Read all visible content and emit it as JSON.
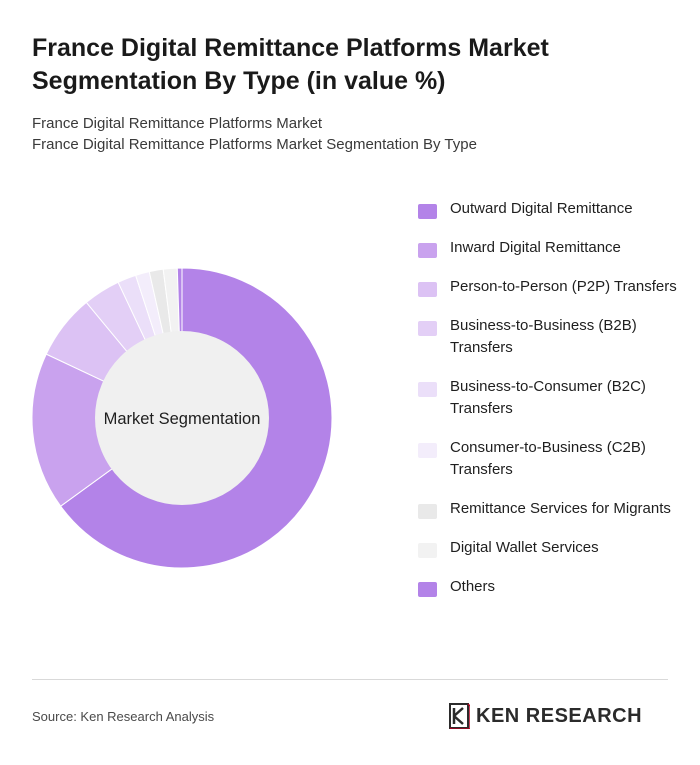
{
  "title": "France Digital Remittance Platforms Market Segmentation By Type (in value %)",
  "subtitle": {
    "line1": "France Digital Remittance Platforms Market",
    "line2": "France Digital Remittance Platforms Market Segmentation By Type"
  },
  "chart_data": {
    "type": "pie",
    "style": "donut",
    "center_label": "Market Segmentation",
    "legend_position": "right",
    "categories": [
      "Outward Digital Remittance",
      "Inward Digital Remittance",
      "Person-to-Person (P2P) Transfers",
      "Business-to-Business (B2B) Transfers",
      "Business-to-Consumer (B2C) Transfers",
      "Consumer-to-Business (C2B) Transfers",
      "Remittance Services for Migrants",
      "Digital Wallet Services",
      "Others"
    ],
    "values": [
      65,
      17,
      7,
      4,
      2,
      1.5,
      1.5,
      1.5,
      0.5
    ],
    "colors": [
      "#b383e8",
      "#c9a2ee",
      "#dcc2f4",
      "#e3cff6",
      "#ebdff9",
      "#f3edfb",
      "#e9e9e9",
      "#f2f2f2",
      "#b383e8"
    ]
  },
  "footer": {
    "source": "Source: Ken Research Analysis",
    "logo_text": "KEN RESEARCH"
  }
}
